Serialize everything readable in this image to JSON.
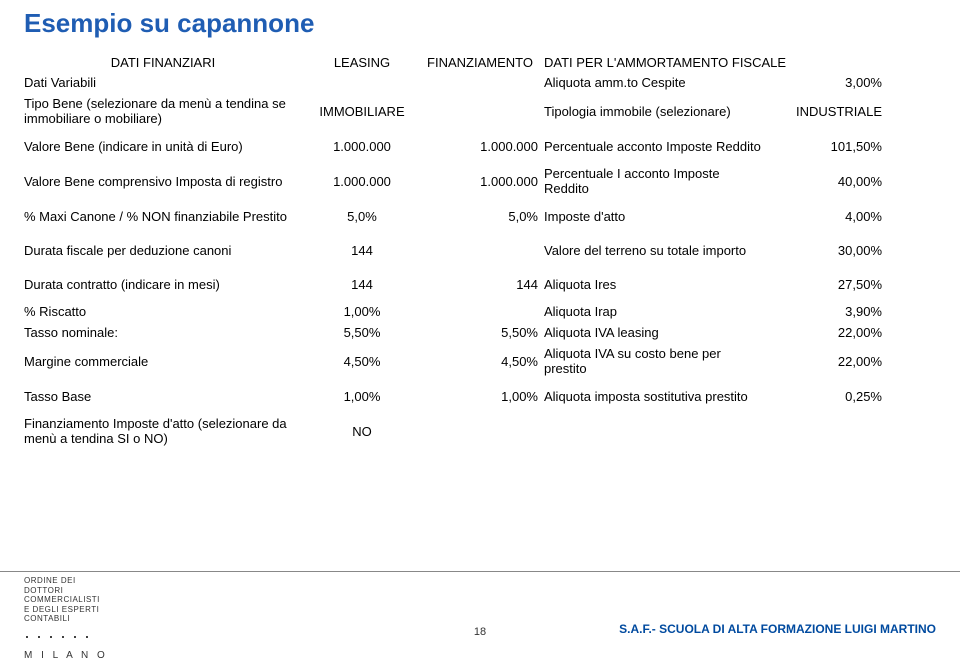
{
  "title": "Esempio su capannone",
  "sections": {
    "col1": "DATI FINANZIARI",
    "col2": "LEASING",
    "col3": "FINANZIAMENTO",
    "col4": "DATI PER L'AMMORTAMENTO FISCALE"
  },
  "rows": [
    {
      "c1": "Dati Variabili",
      "c2": "",
      "c3": "",
      "c4": "Aliquota amm.to Cespite",
      "c5": "3,00%"
    },
    {
      "c1": "Tipo Bene (selezionare da menù a tendina se immobiliare o mobiliare)",
      "c2": "IMMOBILIARE",
      "c3": "",
      "c4": "Tipologia immobile (selezionare)",
      "c5": "INDUSTRIALE",
      "tall": true
    },
    {
      "c1": "Valore Bene (indicare in unità di Euro)",
      "c2": "1.000.000",
      "c3": "1.000.000",
      "c4": "Percentuale  acconto Imposte Reddito",
      "c5": "101,50%",
      "tall": true
    },
    {
      "c1": "Valore Bene comprensivo Imposta di registro",
      "c2": "1.000.000",
      "c3": "1.000.000",
      "c4": "Percentuale I acconto Imposte Reddito",
      "c5": "40,00%",
      "tall": true
    },
    {
      "c1": "% Maxi Canone / % NON finanziabile Prestito",
      "c2": "5,0%",
      "c3": "5,0%",
      "c4": "Imposte d'atto",
      "c5": "4,00%",
      "tall": true
    },
    {
      "c1": "Durata fiscale per deduzione canoni",
      "c2": "144",
      "c3": "",
      "c4": "Valore del terreno su totale importo",
      "c5": "30,00%",
      "tall": true
    },
    {
      "c1": "Durata contratto (indicare in mesi)",
      "c2": "144",
      "c3": "144",
      "c4": "Aliquota Ires",
      "c5": "27,50%",
      "tall": true
    },
    {
      "c1": "% Riscatto",
      "c2": "1,00%",
      "c3": "",
      "c4": "Aliquota Irap",
      "c5": "3,90%"
    },
    {
      "c1": "Tasso nominale:",
      "c2": "5,50%",
      "c3": "5,50%",
      "c4": "Aliquota IVA leasing",
      "c5": "22,00%"
    },
    {
      "c1": "Margine commerciale",
      "c2": "4,50%",
      "c3": "4,50%",
      "c4": "Aliquota IVA su costo bene per prestito",
      "c5": "22,00%",
      "tall": true
    },
    {
      "c1": "Tasso Base",
      "c2": "1,00%",
      "c3": "1,00%",
      "c4": "Aliquota imposta sostitutiva prestito",
      "c5": "0,25%",
      "tall": true
    },
    {
      "c1": "Finanziamento Imposte d'atto (selezionare da menù a tendina SI o NO)",
      "c2": "NO",
      "c3": "",
      "c4": "",
      "c5": "",
      "tall": true
    }
  ],
  "footer": {
    "org1": "ORDINE DEI",
    "org2": "DOTTORI",
    "org3": "COMMERCIALISTI",
    "org4": "E DEGLI ESPERTI",
    "org5": "CONTABILI",
    "city": "M I L A N O",
    "page": "18",
    "school": "S.A.F.- SCUOLA DI ALTA FORMAZIONE LUIGI MARTINO"
  }
}
